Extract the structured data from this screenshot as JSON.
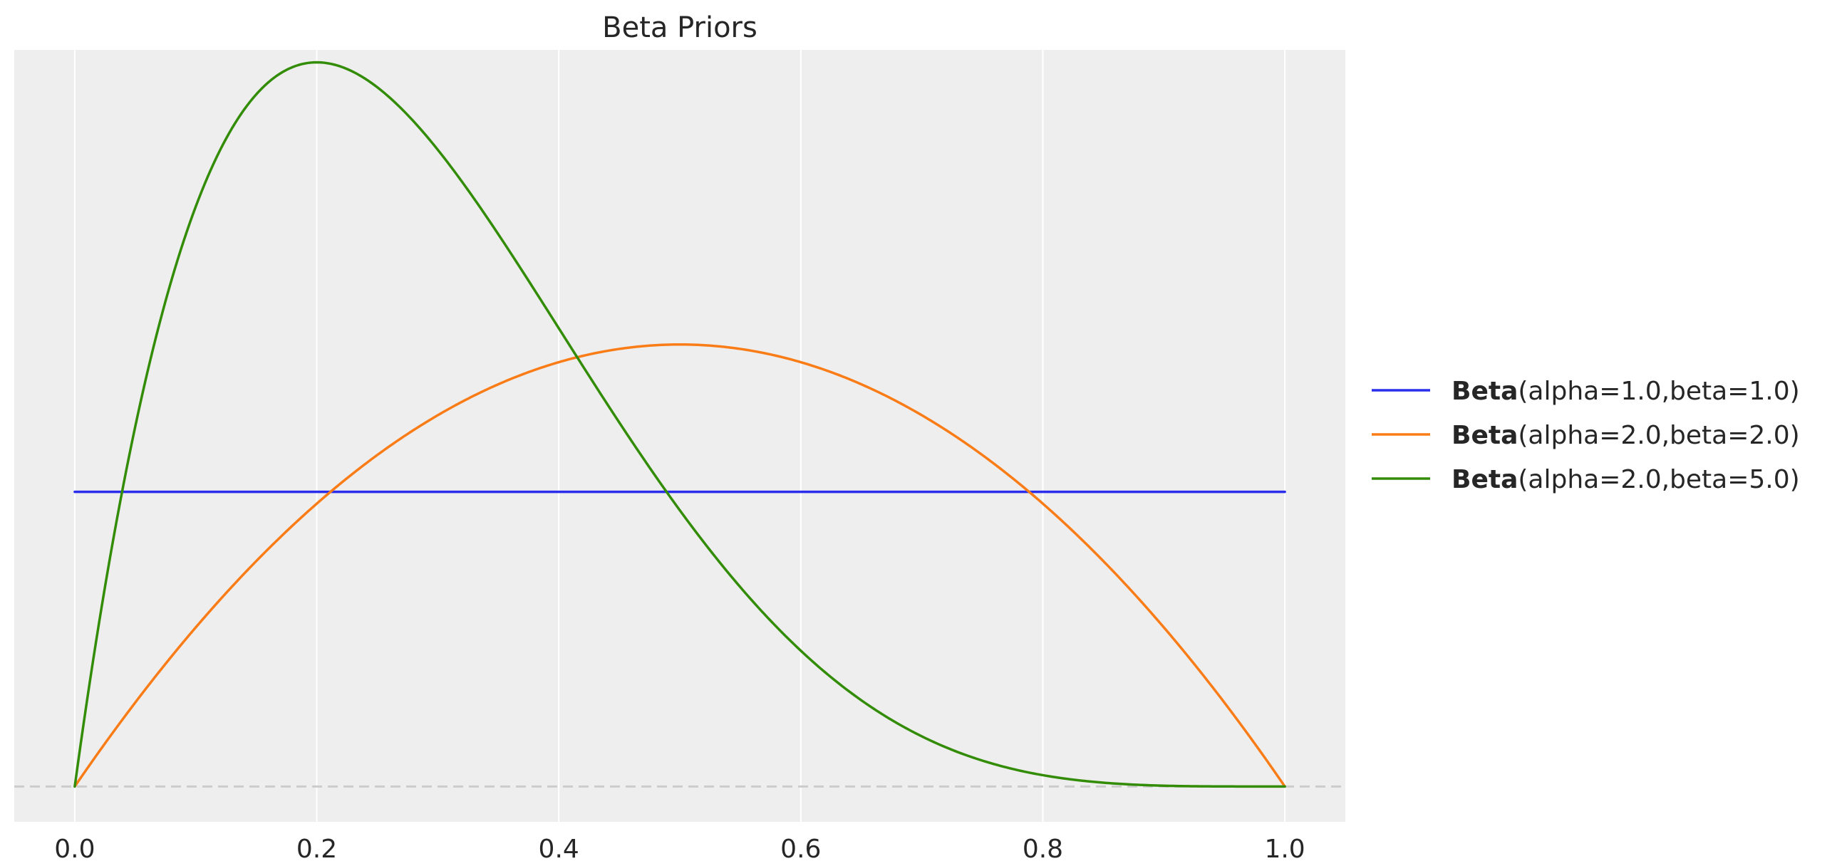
{
  "chart_data": {
    "type": "line",
    "title": "Beta Priors",
    "xlabel": "",
    "ylabel": "",
    "xlim": [
      -0.05,
      1.05
    ],
    "ylim": [
      -0.12,
      2.5
    ],
    "x_ticks": [
      0.0,
      0.2,
      0.4,
      0.6,
      0.8,
      1.0
    ],
    "x_tick_labels": [
      "0.0",
      "0.2",
      "0.4",
      "0.6",
      "0.8",
      "1.0"
    ],
    "y_ticks_shown": false,
    "grid": "vertical",
    "background": "#eeeeee",
    "baseline": {
      "y": 0,
      "style": "dashed",
      "color": "#cccccc"
    },
    "legend": {
      "placement": "center-right",
      "outside_plot": true
    },
    "series": [
      {
        "name_bold": "Beta",
        "name_rest": "(alpha=1.0,beta=1.0)",
        "distribution": "beta",
        "alpha": 1.0,
        "beta": 1.0,
        "color": "#2a2eec"
      },
      {
        "name_bold": "Beta",
        "name_rest": "(alpha=2.0,beta=2.0)",
        "distribution": "beta",
        "alpha": 2.0,
        "beta": 2.0,
        "color": "#fa7c17"
      },
      {
        "name_bold": "Beta",
        "name_rest": "(alpha=2.0,beta=5.0)",
        "distribution": "beta",
        "alpha": 2.0,
        "beta": 5.0,
        "color": "#328c06"
      }
    ]
  }
}
